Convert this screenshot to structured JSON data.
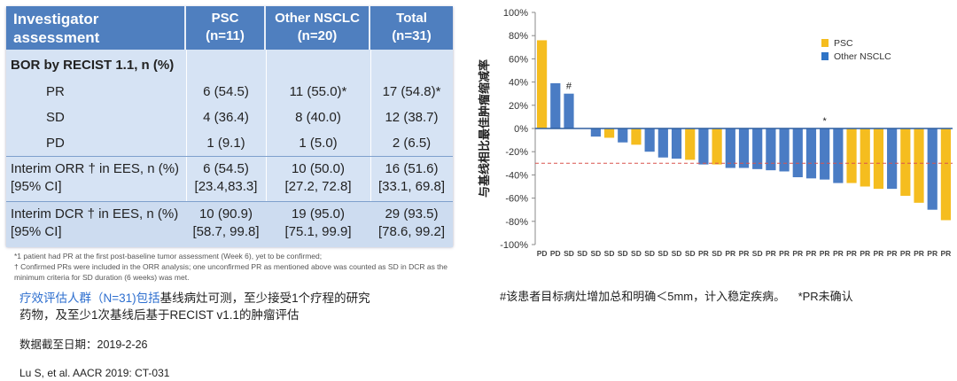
{
  "table": {
    "header": [
      "Investigator assessment",
      "PSC (n=11)",
      "Other NSCLC (n=20)",
      "Total (n=31)"
    ],
    "header_lines": [
      [
        "Investigator",
        "assessment"
      ],
      [
        "PSC",
        "(n=11)"
      ],
      [
        "Other NSCLC",
        "(n=20)"
      ],
      [
        "Total",
        "(n=31)"
      ]
    ],
    "section": "BOR by RECIST 1.1, n (%)",
    "bor_rows": [
      {
        "label": "PR",
        "psc": "6 (54.5)",
        "other": "11 (55.0)*",
        "total": "17 (54.8)*"
      },
      {
        "label": "SD",
        "psc": "4 (36.4)",
        "other": "8 (40.0)",
        "total": "12 (38.7)"
      },
      {
        "label": "PD",
        "psc": "1 (9.1)",
        "other": "1 (5.0)",
        "total": "2 (6.5)"
      }
    ],
    "orr": {
      "label1": "Interim ORR † in EES, n (%)",
      "label2": "[95% CI]",
      "psc": [
        "6 (54.5)",
        "[23.4,83.3]"
      ],
      "other": [
        "10 (50.0)",
        "[27.2, 72.8]"
      ],
      "total": [
        "16 (51.6)",
        "[33.1, 69.8]"
      ]
    },
    "dcr": {
      "label1": "Interim DCR † in EES, n (%)",
      "label2": "[95% CI]",
      "psc": [
        "10 (90.9)",
        "[58.7, 99.8]"
      ],
      "other": [
        "19 (95.0)",
        "[75.1, 99.9]"
      ],
      "total": [
        "29 (93.5)",
        "[78.6, 99.2]"
      ]
    },
    "footnotes": [
      "*1 patient had PR at the first post-baseline tumor assessment (Week 6), yet to be confirmed;",
      "† Confirmed PRs were included in the ORR analysis; one unconfirmed PR as mentioned above was counted as SD in DCR as the minimum criteria for SD duration (6 weeks) was met."
    ]
  },
  "notes": {
    "line1_highlight": "疗效评估人群（N=31)包括",
    "line1_rest": "基线病灶可测，至少接受1个疗程的研究",
    "line2": "药物，及至少1次基线后基于RECIST v1.1的肿瘤评估",
    "cutoff": "数据截至日期：2019-2-26",
    "citation": "Lu S, et al. AACR 2019: CT-031",
    "chart_footnote": "#该患者目标病灶增加总和明确＜5mm，计入稳定疾病。    *PR未确认"
  },
  "colors": {
    "psc": "#f5bd1f",
    "other": "#4a7cc4",
    "other_dark": "#1f6bbf",
    "threshold": "#d9534f",
    "table_header": "#4f7fbf",
    "highlight": "#2e6fcf"
  },
  "chart_data": {
    "type": "bar",
    "title": "",
    "ylabel": "与基线相比最佳肿瘤缩减率",
    "ylim": [
      -100,
      100
    ],
    "yticks": [
      "100%",
      "80%",
      "60%",
      "40%",
      "20%",
      "0%",
      "-20%",
      "-40%",
      "-60%",
      "-80%",
      "-100%"
    ],
    "threshold": -30,
    "legend": [
      {
        "name": "PSC",
        "color": "#f5bd1f"
      },
      {
        "name": "Other NSCLC",
        "color": "#2f74c6"
      }
    ],
    "legend_position": "top-right",
    "categories": [
      "PD",
      "PD",
      "SD",
      "SD",
      "SD",
      "SD",
      "SD",
      "SD",
      "SD",
      "SD",
      "SD",
      "SD",
      "PR",
      "SD",
      "PR",
      "PR",
      "SD",
      "PR",
      "PR",
      "PR",
      "PR",
      "PR",
      "PR",
      "PR",
      "PR",
      "PR",
      "PR",
      "PR",
      "PR",
      "PR",
      "PR"
    ],
    "values": [
      76,
      39,
      30,
      0,
      -7,
      -8,
      -12,
      -14,
      -20,
      -25,
      -26,
      -27,
      -31,
      -31,
      -34,
      -34,
      -35,
      -36,
      -37,
      -42,
      -43,
      -44,
      -47,
      -47,
      -50,
      -52,
      -52,
      -58,
      -64,
      -70,
      -79
    ],
    "groups": [
      "PSC",
      "Other",
      "Other",
      "Other",
      "Other",
      "PSC",
      "Other",
      "PSC",
      "Other",
      "Other",
      "Other",
      "PSC",
      "Other",
      "PSC",
      "Other",
      "Other",
      "Other",
      "Other",
      "Other",
      "Other",
      "Other",
      "Other",
      "Other",
      "PSC",
      "PSC",
      "PSC",
      "Other",
      "PSC",
      "PSC",
      "Other",
      "PSC"
    ],
    "annotations": [
      {
        "index": 2,
        "text": "#"
      },
      {
        "index": 21,
        "text": "*"
      }
    ]
  }
}
